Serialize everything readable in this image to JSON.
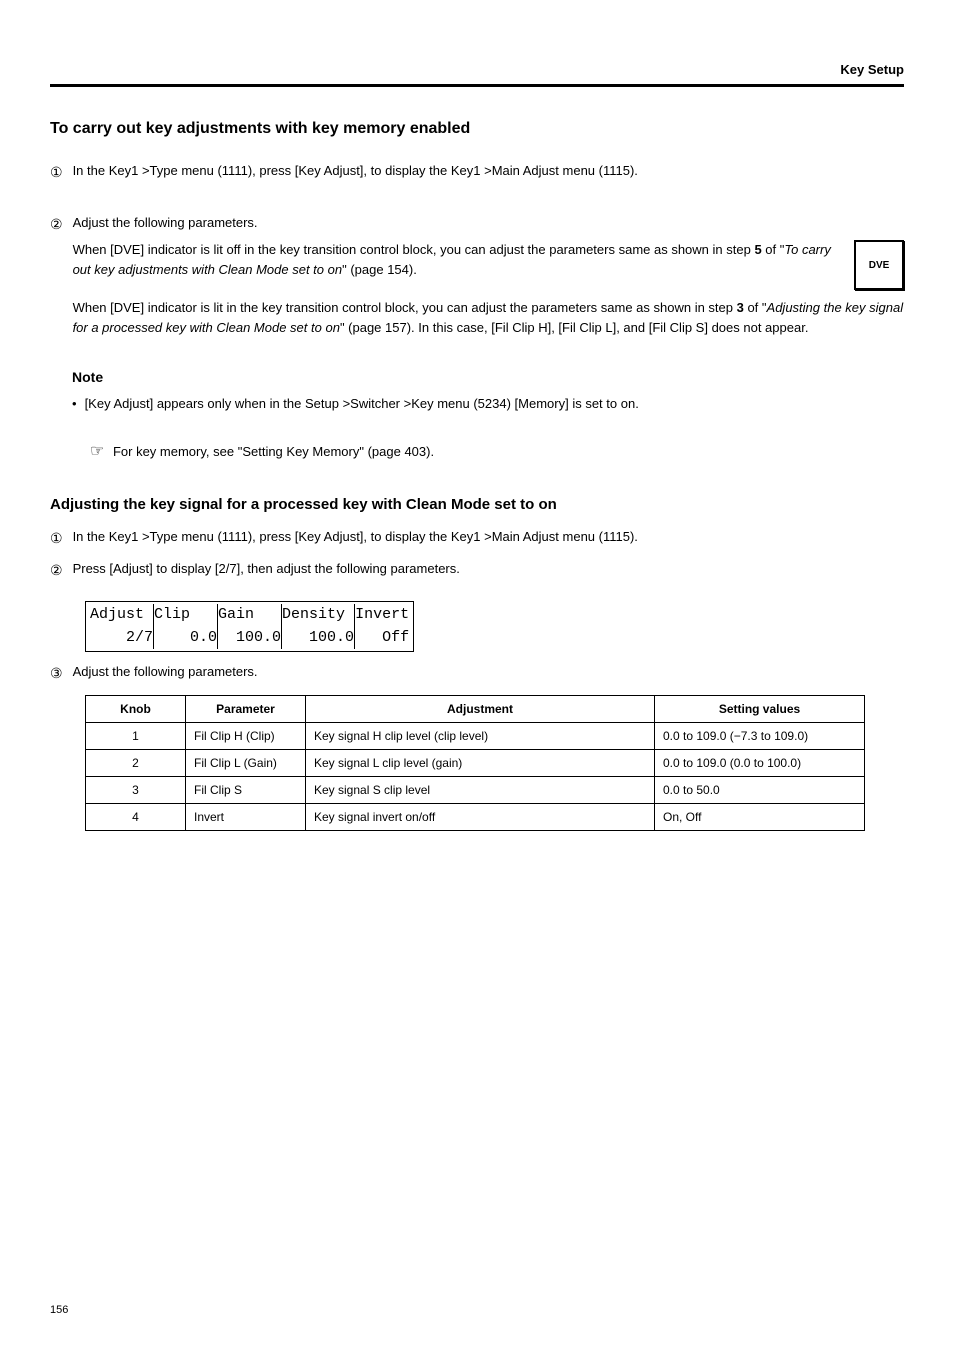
{
  "page_heading": "Key Setup",
  "section_1_title": "To carry out key adjustments with key memory enabled",
  "step_1_1": "In the Key1 >Type menu (1111), press [Key Adjust], to display the Key1 >Main Adjust menu (1115).",
  "step_1_2a": "Adjust the following parameters.",
  "step_1_2b": "When [DVE] indicator is lit off in the key transition control block, you can adjust the parameters same as shown in step <b>5</b> of \"<i>To carry out key adjustments with Clean Mode set to on</i>\" (page 154).",
  "step_1_2c": "When [DVE] indicator is lit in the key transition control block, you can adjust the parameters same as shown in step <b>3</b> of \"<i>Adjusting the key signal for a processed key with Clean Mode set to on</i>\" (page 157). In this case, [Fil Clip H], [Fil Clip L], and [Fil Clip S] does not appear.",
  "dve_label": "DVE",
  "note_label": "Note",
  "note_1": "[Key Adjust] appears only when in the Setup >Switcher >Key menu (5234) [Memory] is set to on.",
  "see_ref": "For key memory, see \"Setting Key Memory\" (page 403).",
  "subhead": "Adjusting the key signal for a processed key with Clean Mode set to on",
  "step_2_1": "In the Key1 >Type menu (1111), press [Key Adjust], to display the Key1 >Main Adjust menu (1115).",
  "step_2_2": "Press [Adjust] to display [2/7], then adjust the following parameters.",
  "adjust_display": {
    "headers": [
      "Adjust",
      "Clip",
      "Gain",
      "Density",
      "Invert"
    ],
    "values": [
      "2/7",
      "0.0",
      "100.0",
      "100.0",
      "Off"
    ]
  },
  "step_2_3": "Adjust the following parameters.",
  "param_table": {
    "headers": [
      "Knob",
      "Parameter",
      "Adjustment",
      "Setting values"
    ],
    "rows": [
      [
        "1",
        "Fil Clip H (Clip)",
        "Key signal H clip level (clip level)",
        "0.0 to 109.0 (−7.3 to 109.0)"
      ],
      [
        "2",
        "Fil Clip L (Gain)",
        "Key signal L clip level (gain)",
        "0.0 to 109.0 (0.0 to 100.0)"
      ],
      [
        "3",
        "Fil Clip S",
        "Key signal S clip level",
        "0.0 to 50.0"
      ],
      [
        "4",
        "Invert",
        "Key signal invert on/off",
        "On, Off"
      ]
    ]
  },
  "page_number": "156",
  "colors": {
    "text": "#000000",
    "background": "#ffffff"
  },
  "typography": {
    "body_font": "Arial",
    "mono_font": "Courier New",
    "body_size_pt": 10,
    "title_size_pt": 13
  }
}
